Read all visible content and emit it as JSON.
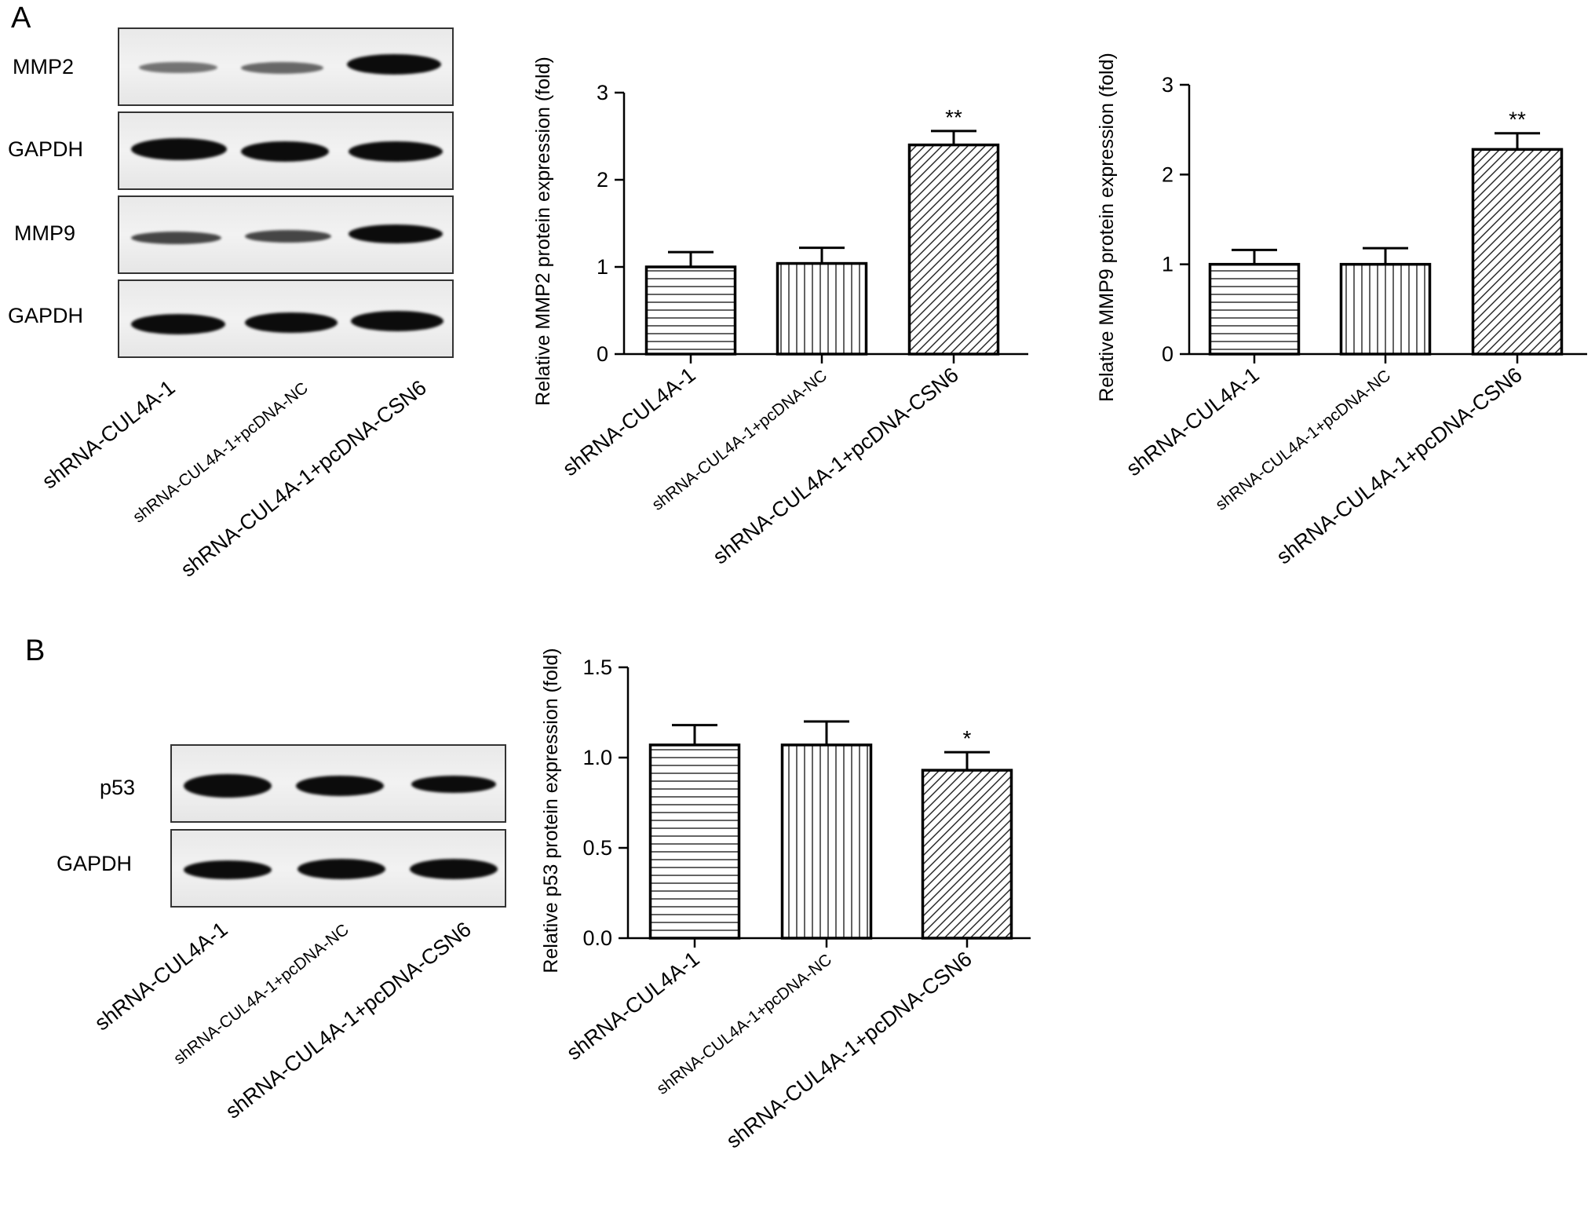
{
  "panels": {
    "a": {
      "letter": "A"
    },
    "b": {
      "letter": "B"
    }
  },
  "conditions": [
    "shRNA-CUL4A-1",
    "shRNA-CUL4A-1+pcDNA-NC",
    "shRNA-CUL4A-1+pcDNA-CSN6"
  ],
  "blots": {
    "a": {
      "rows": [
        "MMP2",
        "GAPDH",
        "MMP9",
        "GAPDH"
      ],
      "lanes": [
        "shRNA-CUL4A-1",
        "shRNA-CUL4A-1+pcDNA-NC",
        "shRNA-CUL4A-1+pcDNA-CSN6"
      ]
    },
    "b": {
      "rows": [
        "p53",
        "GAPDH"
      ],
      "lanes": [
        "shRNA-CUL4A-1",
        "shRNA-CUL4A-1+pcDNA-NC",
        "shRNA-CUL4A-1+pcDNA-CSN6"
      ]
    }
  },
  "chart_data": [
    {
      "type": "bar",
      "categories": [
        "shRNA-CUL4A-1",
        "shRNA-CUL4A-1+pcDNA-NC",
        "shRNA-CUL4A-1+pcDNA-CSN6"
      ],
      "values": [
        1.0,
        1.04,
        2.4
      ],
      "errors": [
        0.17,
        0.18,
        0.16
      ],
      "significance": [
        "",
        "",
        "**"
      ],
      "patterns": [
        "horizontal",
        "vertical",
        "diagonal"
      ],
      "ylabel": "Relative MMP2 protein expression (fold)",
      "ylim": [
        0,
        3
      ],
      "yticks": [
        "0",
        "1",
        "2",
        "3"
      ],
      "grid": false
    },
    {
      "type": "bar",
      "categories": [
        "shRNA-CUL4A-1",
        "shRNA-CUL4A-1+pcDNA-NC",
        "shRNA-CUL4A-1+pcDNA-CSN6"
      ],
      "values": [
        1.0,
        1.0,
        2.28
      ],
      "errors": [
        0.16,
        0.18,
        0.18
      ],
      "significance": [
        "",
        "",
        "**"
      ],
      "patterns": [
        "horizontal",
        "vertical",
        "diagonal"
      ],
      "ylabel": "Relative MMP9 protein expression (fold)",
      "ylim": [
        0,
        3
      ],
      "yticks": [
        "0",
        "1",
        "2",
        "3"
      ],
      "grid": false
    },
    {
      "type": "bar",
      "categories": [
        "shRNA-CUL4A-1",
        "shRNA-CUL4A-1+pcDNA-NC",
        "shRNA-CUL4A-1+pcDNA-CSN6"
      ],
      "values": [
        1.07,
        1.07,
        0.93
      ],
      "errors": [
        0.11,
        0.13,
        0.1
      ],
      "significance": [
        "",
        "",
        "*"
      ],
      "patterns": [
        "horizontal",
        "vertical",
        "diagonal"
      ],
      "ylabel": "Relative p53 protein expression (fold)",
      "ylim": [
        0,
        1.5
      ],
      "yticks": [
        "0.0",
        "0.5",
        "1.0",
        "1.5"
      ],
      "grid": false
    }
  ]
}
